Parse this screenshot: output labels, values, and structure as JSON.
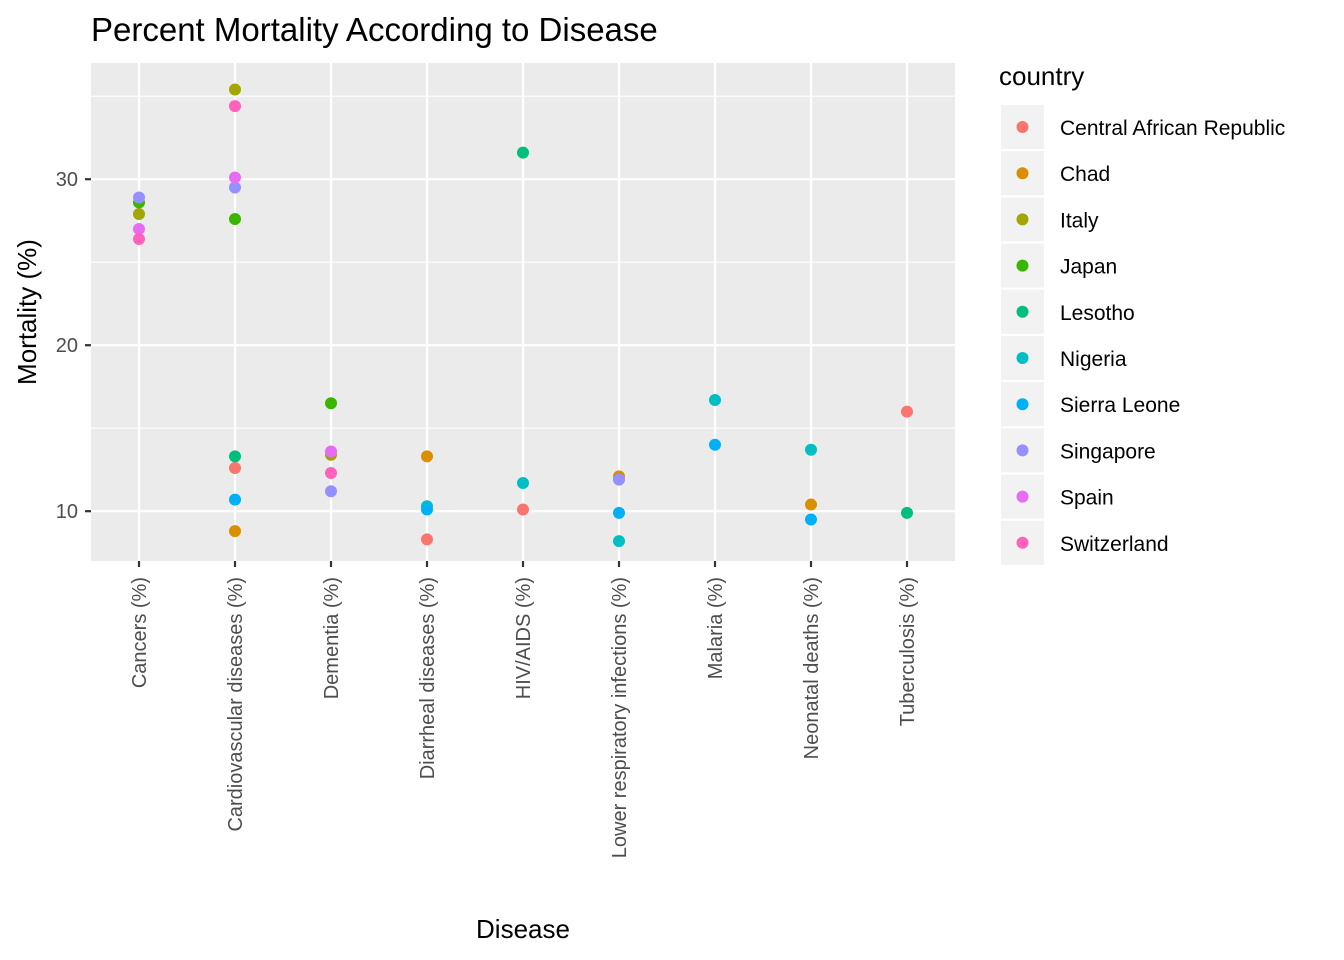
{
  "chart_data": {
    "type": "scatter",
    "title": "Percent Mortality According to Disease",
    "xlabel": "Disease",
    "ylabel": "Mortality (%)",
    "ylim": [
      7,
      37
    ],
    "yticks": [
      10,
      20,
      30
    ],
    "grid": true,
    "legend_title": "country",
    "legend_position": "right",
    "categories": [
      "Cancers (%)",
      "Cardiovascular diseases (%)",
      "Dementia (%)",
      "Diarrheal diseases (%)",
      "HIV/AIDS (%)",
      "Lower respiratory infections (%)",
      "Malaria (%)",
      "Neonatal deaths (%)",
      "Tuberculosis (%)"
    ],
    "series": [
      {
        "name": "Central African Republic",
        "color": "#F8766D",
        "points": [
          [
            "Cardiovascular diseases (%)",
            12.6
          ],
          [
            "Diarrheal diseases (%)",
            8.3
          ],
          [
            "HIV/AIDS (%)",
            10.1
          ],
          [
            "Tuberculosis (%)",
            16.0
          ]
        ]
      },
      {
        "name": "Chad",
        "color": "#D89000",
        "points": [
          [
            "Cardiovascular diseases (%)",
            8.8
          ],
          [
            "Diarrheal diseases (%)",
            13.3
          ],
          [
            "Lower respiratory infections (%)",
            12.1
          ],
          [
            "Neonatal deaths (%)",
            10.4
          ]
        ]
      },
      {
        "name": "Italy",
        "color": "#A3A500",
        "points": [
          [
            "Cancers (%)",
            27.9
          ],
          [
            "Cardiovascular diseases (%)",
            35.4
          ],
          [
            "Dementia (%)",
            13.4
          ]
        ]
      },
      {
        "name": "Japan",
        "color": "#39B600",
        "points": [
          [
            "Cancers (%)",
            28.6
          ],
          [
            "Cardiovascular diseases (%)",
            27.6
          ],
          [
            "Dementia (%)",
            16.5
          ]
        ]
      },
      {
        "name": "Lesotho",
        "color": "#00BF7D",
        "points": [
          [
            "Cardiovascular diseases (%)",
            13.3
          ],
          [
            "HIV/AIDS (%)",
            31.6
          ],
          [
            "Tuberculosis (%)",
            9.9
          ]
        ]
      },
      {
        "name": "Nigeria",
        "color": "#00BFC4",
        "points": [
          [
            "Diarrheal diseases (%)",
            10.3
          ],
          [
            "HIV/AIDS (%)",
            11.7
          ],
          [
            "Lower respiratory infections (%)",
            8.2
          ],
          [
            "Malaria (%)",
            16.7
          ],
          [
            "Neonatal deaths (%)",
            13.7
          ]
        ]
      },
      {
        "name": "Sierra Leone",
        "color": "#00B0F6",
        "points": [
          [
            "Cardiovascular diseases (%)",
            10.7
          ],
          [
            "Diarrheal diseases (%)",
            10.1
          ],
          [
            "Lower respiratory infections (%)",
            9.9
          ],
          [
            "Malaria (%)",
            14.0
          ],
          [
            "Neonatal deaths (%)",
            9.5
          ]
        ]
      },
      {
        "name": "Singapore",
        "color": "#9590FF",
        "points": [
          [
            "Cancers (%)",
            28.9
          ],
          [
            "Cardiovascular diseases (%)",
            29.5
          ],
          [
            "Dementia (%)",
            11.2
          ],
          [
            "Lower respiratory infections (%)",
            11.9
          ]
        ]
      },
      {
        "name": "Spain",
        "color": "#E76BF3",
        "points": [
          [
            "Cancers (%)",
            27.0
          ],
          [
            "Cardiovascular diseases (%)",
            30.1
          ],
          [
            "Dementia (%)",
            13.6
          ]
        ]
      },
      {
        "name": "Switzerland",
        "color": "#FF62BC",
        "points": [
          [
            "Cancers (%)",
            26.4
          ],
          [
            "Cardiovascular diseases (%)",
            34.4
          ],
          [
            "Dementia (%)",
            12.3
          ]
        ]
      }
    ]
  }
}
